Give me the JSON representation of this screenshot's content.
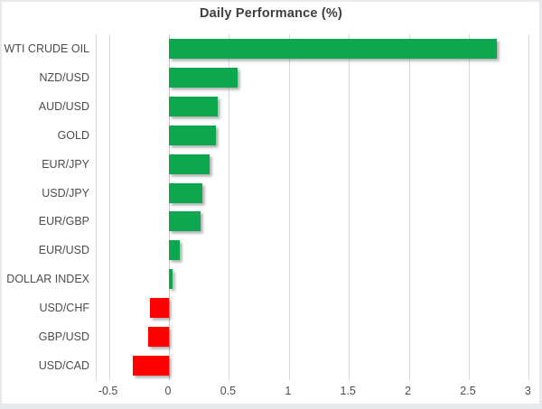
{
  "chart_data": {
    "type": "bar",
    "orientation": "horizontal",
    "title": "Daily Performance (%)",
    "categories": [
      "WTI CRUDE OIL",
      "NZD/USD",
      "AUD/USD",
      "GOLD",
      "EUR/JPY",
      "USD/JPY",
      "EUR/GBP",
      "EUR/USD",
      "DOLLAR INDEX",
      "USD/CHF",
      "GBP/USD",
      "USD/CAD"
    ],
    "values": [
      2.73,
      0.57,
      0.41,
      0.39,
      0.34,
      0.28,
      0.26,
      0.09,
      0.03,
      -0.16,
      -0.17,
      -0.3
    ],
    "x_ticks": [
      -0.5,
      0,
      0.5,
      1,
      1.5,
      2,
      2.5,
      3
    ],
    "x_tick_labels": [
      "-0.5",
      "0",
      "0.5",
      "1",
      "1.5",
      "2",
      "2.5",
      "3"
    ],
    "xlim": [
      -0.6,
      3.07
    ],
    "grid": true,
    "legend": "none",
    "positive_color": "#0da750",
    "negative_color": "#ff0000"
  },
  "colors": {
    "background": "#ffffff",
    "frame_edge": "#e7e9ec",
    "gridline": "#d9d9d9",
    "zero_axis": "#c6c6c6",
    "title_text": "#3f3f3f",
    "axis_text": "#4d4d4d"
  }
}
